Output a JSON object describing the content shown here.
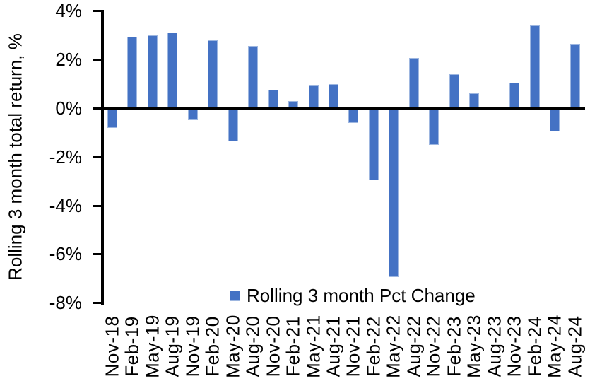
{
  "chart_data": {
    "type": "bar",
    "title": "",
    "xlabel": "",
    "ylabel": "Rolling 3 month total return, %",
    "ylim": [
      -8,
      4
    ],
    "ytick_step": 2,
    "y_tick_labels": [
      "4%",
      "2%",
      "0%",
      "-2%",
      "-4%",
      "-6%",
      "-8%"
    ],
    "grid": false,
    "legend_position": "bottom-center",
    "series_name": "Rolling 3 month Pct Change",
    "categories": [
      "Nov-18",
      "Feb-19",
      "May-19",
      "Aug-19",
      "Nov-19",
      "Feb-20",
      "May-20",
      "Aug-20",
      "Nov-20",
      "Feb-21",
      "May-21",
      "Aug-21",
      "Nov-21",
      "Feb-22",
      "May-22",
      "Aug-22",
      "Nov-22",
      "Feb-23",
      "May-23",
      "Aug-23",
      "Nov-23",
      "Feb-24",
      "May-24",
      "Aug-24"
    ],
    "values": [
      -0.75,
      2.95,
      3.0,
      3.1,
      -0.45,
      2.8,
      -1.3,
      2.55,
      0.75,
      0.3,
      0.95,
      1.0,
      -0.55,
      -2.9,
      -6.9,
      2.05,
      -1.45,
      1.4,
      0.6,
      0,
      1.05,
      3.4,
      -0.9,
      2.65
    ],
    "colors": {
      "bar_fill": "#4472C4",
      "bar_border": "#9DB6E0",
      "axis": "#000000",
      "text": "#000000",
      "background": "#FFFFFF"
    }
  },
  "legend": {
    "label": "Rolling 3 month Pct Change"
  }
}
